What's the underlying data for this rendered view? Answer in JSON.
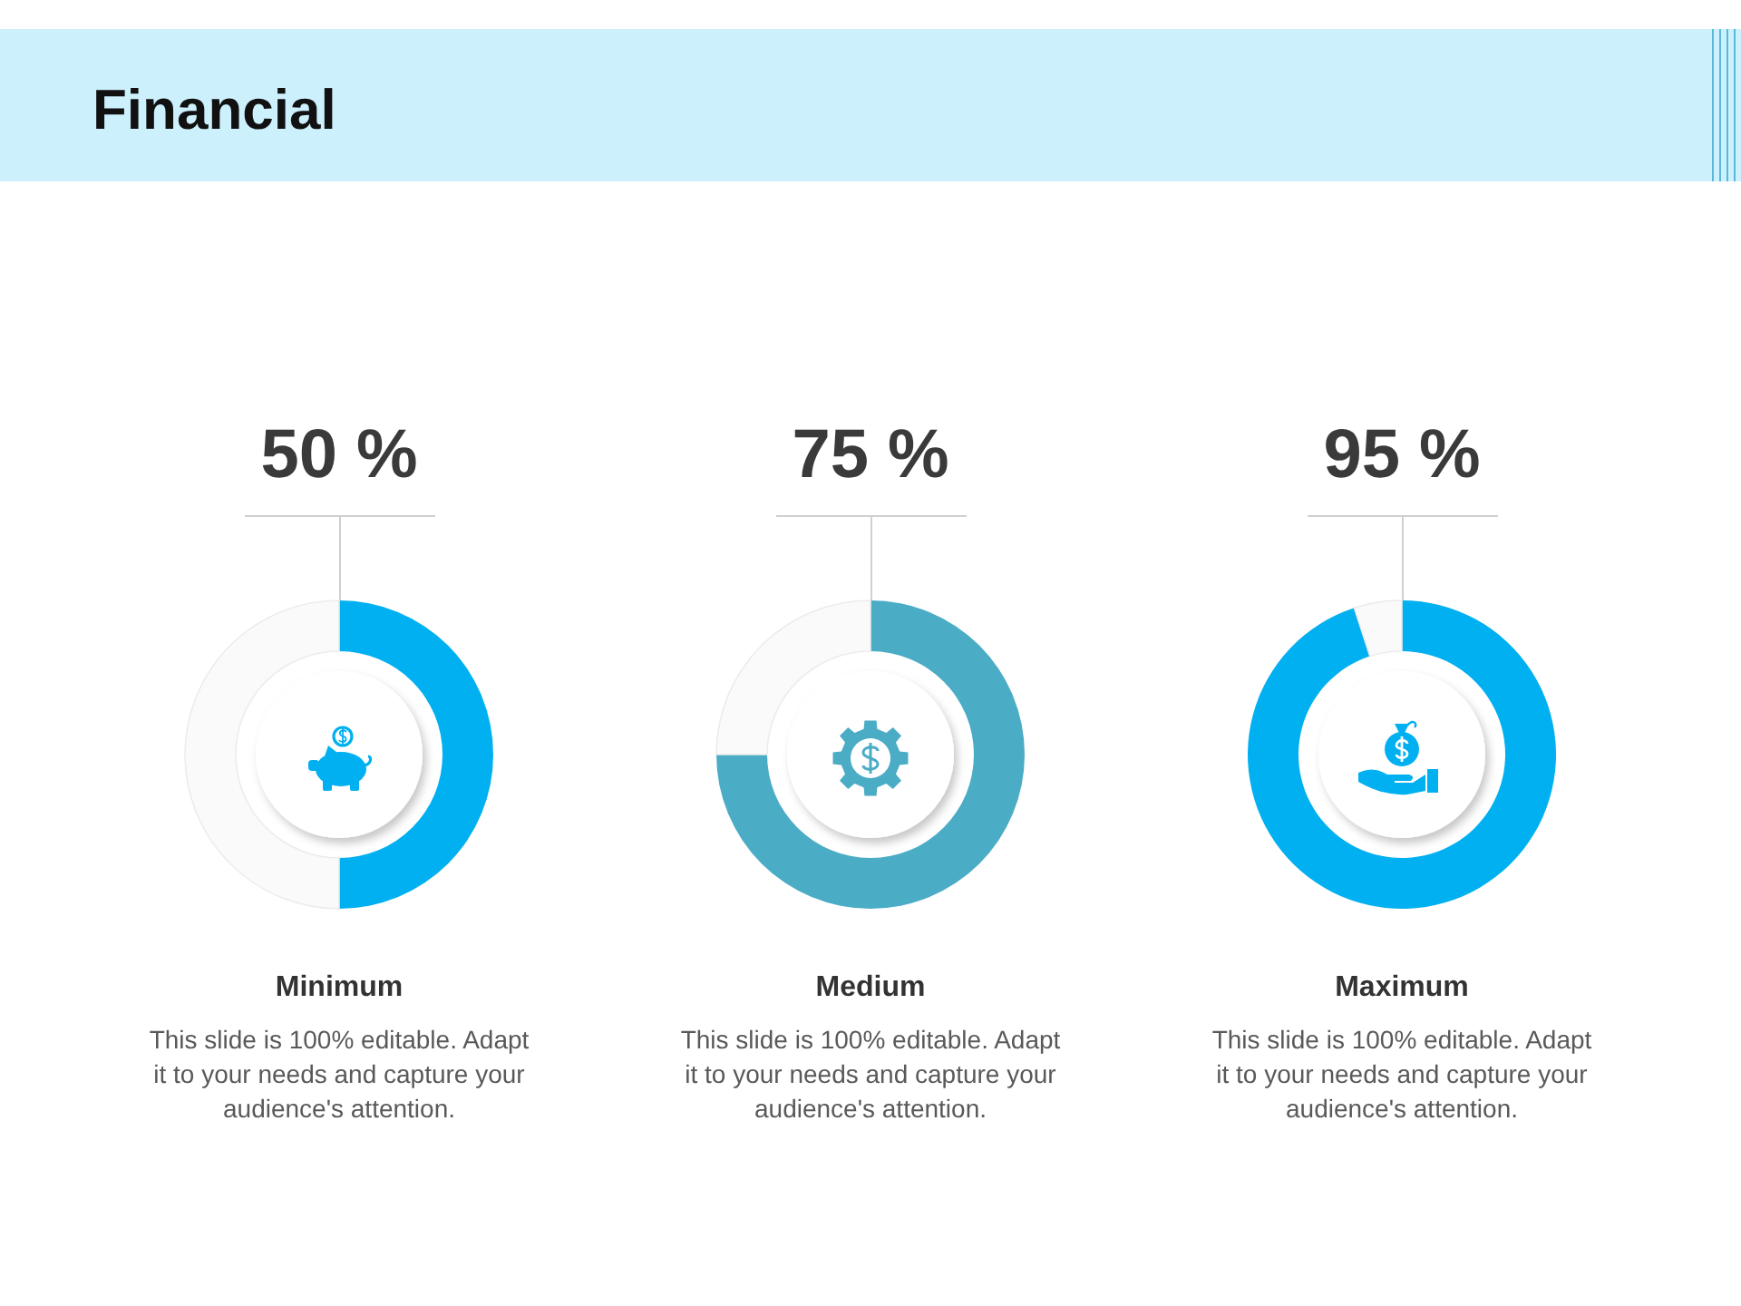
{
  "chart_data": [
    {
      "type": "other",
      "title": "Financial"
    },
    {
      "type": "donut",
      "categories": [
        null,
        null
      ],
      "values": [
        50,
        50
      ],
      "colors": [
        "#00b0f0",
        "#fafafa"
      ],
      "value_labels": [
        "50 %",
        null
      ],
      "xlabel": "Minimum",
      "annotations": [
        "This slide is 100% editable. Adapt it to your needs and capture your audience's attention."
      ]
    },
    {
      "type": "donut",
      "categories": [
        null,
        null
      ],
      "values": [
        75,
        25
      ],
      "colors": [
        "#4bacc6",
        "#fafafa"
      ],
      "value_labels": [
        "75 %",
        null
      ],
      "xlabel": "Medium",
      "annotations": [
        "This slide is 100% editable. Adapt it to your needs and capture your audience's attention."
      ]
    },
    {
      "type": "donut",
      "categories": [
        null,
        null
      ],
      "values": [
        95,
        5
      ],
      "colors": [
        "#00b0f0",
        "#fafafa"
      ],
      "value_labels": [
        "95 %",
        null
      ],
      "xlabel": "Maximum",
      "annotations": [
        "This slide is 100% editable. Adapt it to your needs and capture your audience's attention."
      ]
    }
  ]
}
